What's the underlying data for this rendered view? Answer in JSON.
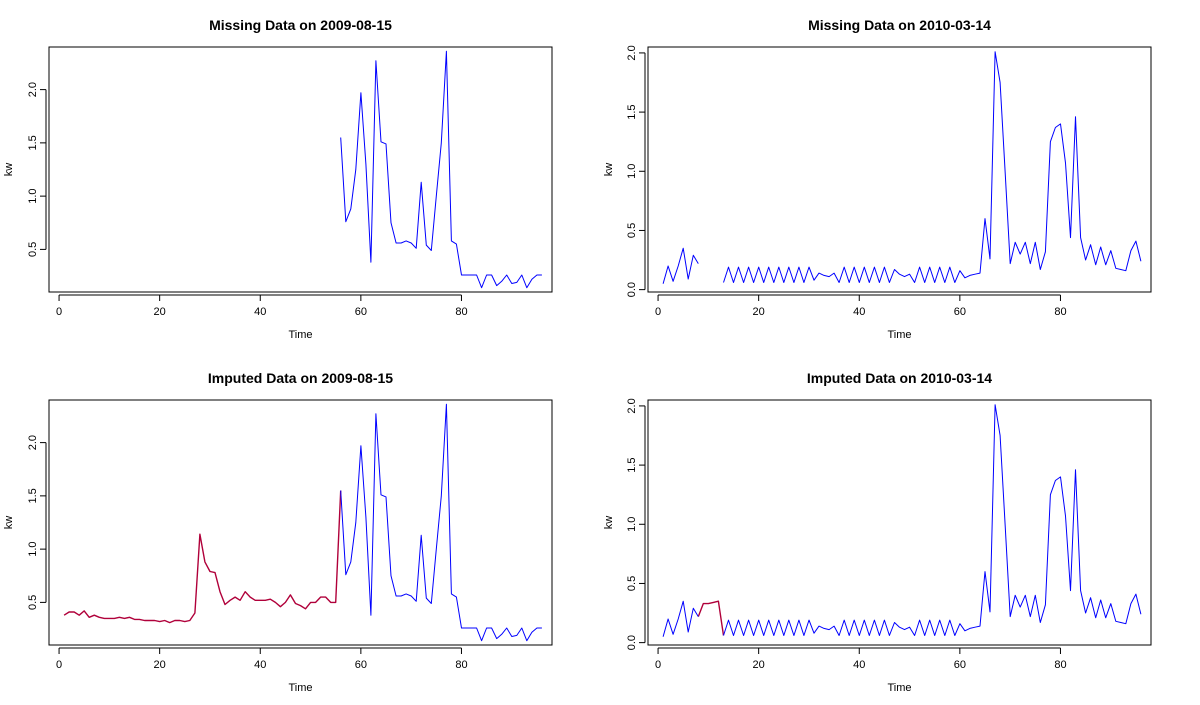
{
  "colors": {
    "observed": "#0000ff",
    "imputed": "#b0003a",
    "axis": "#000000"
  },
  "chart_data": [
    {
      "type": "line",
      "title": "Missing Data on 2009-08-15",
      "xlabel": "Time",
      "ylabel": "kw",
      "xlim": [
        -2,
        98
      ],
      "ylim": [
        0.1,
        2.4
      ],
      "xticks": [
        0,
        20,
        40,
        60,
        80
      ],
      "yticks": [
        0.5,
        1.0,
        1.5,
        2.0
      ],
      "ytick_labels": [
        "0.5",
        "1.0",
        "1.5",
        "2.0"
      ],
      "series": [
        {
          "role": "observed",
          "x": [
            56,
            57,
            58,
            59,
            60,
            61,
            62,
            63,
            64,
            65,
            66,
            67,
            68,
            69,
            70,
            71,
            72,
            73,
            74,
            75,
            76,
            77,
            78,
            79,
            80,
            81,
            82,
            83,
            84,
            85,
            86,
            87,
            88,
            89,
            90,
            91,
            92,
            93,
            94,
            95,
            96
          ],
          "y": [
            1.55,
            0.76,
            0.88,
            1.25,
            1.97,
            1.3,
            0.38,
            2.27,
            1.51,
            1.49,
            0.75,
            0.56,
            0.56,
            0.58,
            0.56,
            0.51,
            1.13,
            0.54,
            0.49,
            1.0,
            1.5,
            2.36,
            0.58,
            0.55,
            0.26,
            0.26,
            0.26,
            0.26,
            0.14,
            0.26,
            0.26,
            0.16,
            0.2,
            0.26,
            0.18,
            0.19,
            0.26,
            0.14,
            0.22,
            0.26,
            0.26
          ]
        }
      ]
    },
    {
      "type": "line",
      "title": "Missing Data on 2010-03-14",
      "xlabel": "Time",
      "ylabel": "kw",
      "xlim": [
        -2,
        98
      ],
      "ylim": [
        -0.02,
        2.05
      ],
      "xticks": [
        0,
        20,
        40,
        60,
        80
      ],
      "yticks": [
        0.0,
        0.5,
        1.0,
        1.5,
        2.0
      ],
      "ytick_labels": [
        "0.0",
        "0.5",
        "1.0",
        "1.5",
        "2.0"
      ],
      "series": [
        {
          "role": "observed",
          "x": [
            1,
            2,
            3,
            4,
            5,
            6,
            7,
            8
          ],
          "y": [
            0.05,
            0.2,
            0.07,
            0.2,
            0.35,
            0.09,
            0.29,
            0.22
          ]
        },
        {
          "role": "observed",
          "x": [
            13,
            14,
            15,
            16,
            17,
            18,
            19,
            20,
            21,
            22,
            23,
            24,
            25,
            26,
            27,
            28,
            29,
            30,
            31,
            32,
            33,
            34,
            35,
            36,
            37,
            38,
            39,
            40,
            41,
            42,
            43,
            44,
            45,
            46,
            47,
            48,
            49,
            50,
            51,
            52,
            53,
            54,
            55,
            56,
            57,
            58,
            59,
            60,
            61,
            62,
            63,
            64,
            65,
            66,
            67,
            68,
            69,
            70,
            71,
            72,
            73,
            74,
            75,
            76,
            77,
            78,
            79,
            80,
            81,
            82,
            83,
            84,
            85,
            86,
            87,
            88,
            89,
            90,
            91,
            92,
            93,
            94,
            95,
            96
          ],
          "y": [
            0.06,
            0.19,
            0.06,
            0.19,
            0.06,
            0.19,
            0.06,
            0.19,
            0.06,
            0.19,
            0.06,
            0.19,
            0.06,
            0.19,
            0.06,
            0.19,
            0.06,
            0.19,
            0.08,
            0.14,
            0.12,
            0.11,
            0.14,
            0.06,
            0.19,
            0.06,
            0.19,
            0.06,
            0.19,
            0.06,
            0.19,
            0.06,
            0.19,
            0.06,
            0.17,
            0.13,
            0.11,
            0.13,
            0.06,
            0.19,
            0.06,
            0.19,
            0.06,
            0.19,
            0.06,
            0.19,
            0.06,
            0.16,
            0.1,
            0.12,
            0.13,
            0.14,
            0.6,
            0.26,
            2.01,
            1.75,
            1.0,
            0.22,
            0.4,
            0.3,
            0.4,
            0.22,
            0.4,
            0.17,
            0.32,
            1.25,
            1.37,
            1.4,
            1.07,
            0.44,
            1.46,
            0.44,
            0.25,
            0.38,
            0.21,
            0.36,
            0.21,
            0.33,
            0.18,
            0.17,
            0.16,
            0.33,
            0.41,
            0.24
          ]
        }
      ]
    },
    {
      "type": "line",
      "title": "Imputed Data on 2009-08-15",
      "xlabel": "Time",
      "ylabel": "kw",
      "xlim": [
        -2,
        98
      ],
      "ylim": [
        0.1,
        2.4
      ],
      "xticks": [
        0,
        20,
        40,
        60,
        80
      ],
      "yticks": [
        0.5,
        1.0,
        1.5,
        2.0
      ],
      "ytick_labels": [
        "0.5",
        "1.0",
        "1.5",
        "2.0"
      ],
      "series": [
        {
          "role": "imputed",
          "x": [
            1,
            2,
            3,
            4,
            5,
            6,
            7,
            8,
            9,
            10,
            11,
            12,
            13,
            14,
            15,
            16,
            17,
            18,
            19,
            20,
            21,
            22,
            23,
            24,
            25,
            26,
            27,
            28,
            29,
            30,
            31,
            32,
            33,
            34,
            35,
            36,
            37,
            38,
            39,
            40,
            41,
            42,
            43,
            44,
            45,
            46,
            47,
            48,
            49,
            50,
            51,
            52,
            53,
            54,
            55,
            56
          ],
          "y": [
            0.38,
            0.41,
            0.41,
            0.38,
            0.42,
            0.36,
            0.38,
            0.36,
            0.35,
            0.35,
            0.35,
            0.36,
            0.35,
            0.36,
            0.34,
            0.34,
            0.33,
            0.33,
            0.33,
            0.32,
            0.33,
            0.31,
            0.33,
            0.33,
            0.32,
            0.33,
            0.4,
            1.14,
            0.88,
            0.79,
            0.78,
            0.6,
            0.48,
            0.52,
            0.55,
            0.52,
            0.6,
            0.55,
            0.52,
            0.52,
            0.52,
            0.53,
            0.5,
            0.46,
            0.5,
            0.57,
            0.49,
            0.47,
            0.44,
            0.5,
            0.5,
            0.55,
            0.55,
            0.5,
            0.5,
            1.55
          ]
        },
        {
          "role": "observed",
          "x": [
            56,
            57,
            58,
            59,
            60,
            61,
            62,
            63,
            64,
            65,
            66,
            67,
            68,
            69,
            70,
            71,
            72,
            73,
            74,
            75,
            76,
            77,
            78,
            79,
            80,
            81,
            82,
            83,
            84,
            85,
            86,
            87,
            88,
            89,
            90,
            91,
            92,
            93,
            94,
            95,
            96
          ],
          "y": [
            1.55,
            0.76,
            0.88,
            1.25,
            1.97,
            1.3,
            0.38,
            2.27,
            1.51,
            1.49,
            0.75,
            0.56,
            0.56,
            0.58,
            0.56,
            0.51,
            1.13,
            0.54,
            0.49,
            1.0,
            1.5,
            2.36,
            0.58,
            0.55,
            0.26,
            0.26,
            0.26,
            0.26,
            0.14,
            0.26,
            0.26,
            0.16,
            0.2,
            0.26,
            0.18,
            0.19,
            0.26,
            0.14,
            0.22,
            0.26,
            0.26
          ]
        }
      ]
    },
    {
      "type": "line",
      "title": "Imputed Data on 2010-03-14",
      "xlabel": "Time",
      "ylabel": "kw",
      "xlim": [
        -2,
        98
      ],
      "ylim": [
        -0.02,
        2.05
      ],
      "xticks": [
        0,
        20,
        40,
        60,
        80
      ],
      "yticks": [
        0.0,
        0.5,
        1.0,
        1.5,
        2.0
      ],
      "ytick_labels": [
        "0.0",
        "0.5",
        "1.0",
        "1.5",
        "2.0"
      ],
      "series": [
        {
          "role": "observed",
          "x": [
            1,
            2,
            3,
            4,
            5,
            6,
            7,
            8
          ],
          "y": [
            0.05,
            0.2,
            0.07,
            0.2,
            0.35,
            0.09,
            0.29,
            0.22
          ]
        },
        {
          "role": "imputed",
          "x": [
            8,
            9,
            10,
            11,
            12,
            13
          ],
          "y": [
            0.22,
            0.33,
            0.33,
            0.34,
            0.35,
            0.06
          ]
        },
        {
          "role": "observed",
          "x": [
            13,
            14,
            15,
            16,
            17,
            18,
            19,
            20,
            21,
            22,
            23,
            24,
            25,
            26,
            27,
            28,
            29,
            30,
            31,
            32,
            33,
            34,
            35,
            36,
            37,
            38,
            39,
            40,
            41,
            42,
            43,
            44,
            45,
            46,
            47,
            48,
            49,
            50,
            51,
            52,
            53,
            54,
            55,
            56,
            57,
            58,
            59,
            60,
            61,
            62,
            63,
            64,
            65,
            66,
            67,
            68,
            69,
            70,
            71,
            72,
            73,
            74,
            75,
            76,
            77,
            78,
            79,
            80,
            81,
            82,
            83,
            84,
            85,
            86,
            87,
            88,
            89,
            90,
            91,
            92,
            93,
            94,
            95,
            96
          ],
          "y": [
            0.06,
            0.19,
            0.06,
            0.19,
            0.06,
            0.19,
            0.06,
            0.19,
            0.06,
            0.19,
            0.06,
            0.19,
            0.06,
            0.19,
            0.06,
            0.19,
            0.06,
            0.19,
            0.08,
            0.14,
            0.12,
            0.11,
            0.14,
            0.06,
            0.19,
            0.06,
            0.19,
            0.06,
            0.19,
            0.06,
            0.19,
            0.06,
            0.19,
            0.06,
            0.17,
            0.13,
            0.11,
            0.13,
            0.06,
            0.19,
            0.06,
            0.19,
            0.06,
            0.19,
            0.06,
            0.19,
            0.06,
            0.16,
            0.1,
            0.12,
            0.13,
            0.14,
            0.6,
            0.26,
            2.01,
            1.75,
            1.0,
            0.22,
            0.4,
            0.3,
            0.4,
            0.22,
            0.4,
            0.17,
            0.32,
            1.25,
            1.37,
            1.4,
            1.07,
            0.44,
            1.46,
            0.44,
            0.25,
            0.38,
            0.21,
            0.36,
            0.21,
            0.33,
            0.18,
            0.17,
            0.16,
            0.33,
            0.41,
            0.24
          ]
        }
      ]
    }
  ]
}
